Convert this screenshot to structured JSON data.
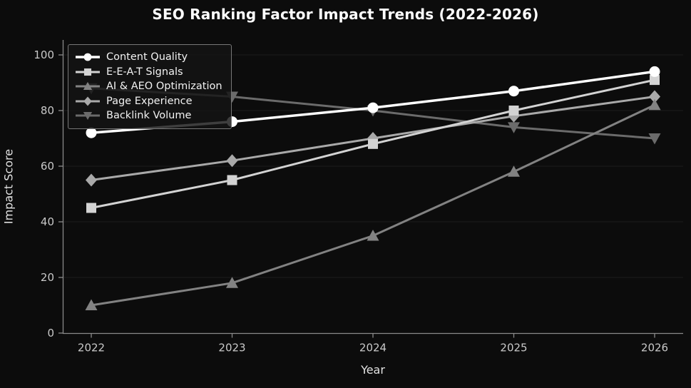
{
  "title": "SEO Ranking Factor Impact Trends (2022-2026)",
  "chart_data": {
    "type": "line",
    "title": "SEO Ranking Factor Impact Trends (2022-2026)",
    "xlabel": "Year",
    "ylabel": "Impact Score",
    "x": [
      2022,
      2023,
      2024,
      2025,
      2026
    ],
    "ylim": [
      0,
      100
    ],
    "yticks": [
      0,
      20,
      40,
      60,
      80,
      100
    ],
    "grid": "horizontal",
    "legend_position": "upper left",
    "background": "#0c0c0c",
    "series": [
      {
        "name": "Content Quality",
        "marker": "circle",
        "color": "#ffffff",
        "values": [
          72,
          76,
          81,
          87,
          94
        ]
      },
      {
        "name": "E-E-A-T Signals",
        "marker": "square",
        "color": "#d3d3d3",
        "values": [
          45,
          55,
          68,
          80,
          91
        ]
      },
      {
        "name": "AI & AEO Optimization",
        "marker": "triangle-up",
        "color": "#828282",
        "values": [
          10,
          18,
          35,
          58,
          82
        ]
      },
      {
        "name": "Page Experience",
        "marker": "diamond",
        "color": "#a9a9a9",
        "values": [
          55,
          62,
          70,
          78,
          85
        ]
      },
      {
        "name": "Backlink Volume",
        "marker": "triangle-down",
        "color": "#6b6b6b",
        "values": [
          88,
          85,
          80,
          74,
          70
        ]
      }
    ]
  },
  "style": {
    "grid_color": "#1d1d1d",
    "spine_color": "#8a8a8a",
    "tick_label_color": "#c9c9c9",
    "title_color": "#ffffff"
  }
}
